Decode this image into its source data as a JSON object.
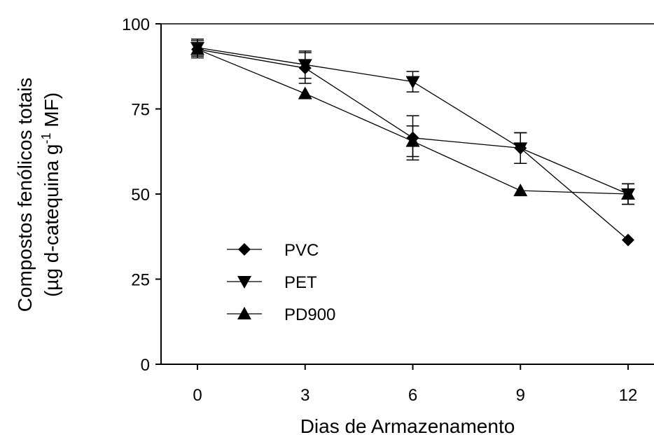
{
  "chart_data": {
    "type": "line",
    "xlabel": "Dias de Armazenamento",
    "ylabel_line1": "Compostos fenólicos totais",
    "ylabel_line2_pre": "(µg d-catequina g",
    "ylabel_line2_sup": "-1",
    "ylabel_line2_post": " MF)",
    "x": [
      0,
      3,
      6,
      9,
      12
    ],
    "xticks": [
      "0",
      "3",
      "6",
      "9",
      "12"
    ],
    "yticks": [
      "0",
      "25",
      "50",
      "75",
      "100"
    ],
    "xlim": [
      0,
      12
    ],
    "ylim": [
      0,
      100
    ],
    "grid": false,
    "legend_position": "lower-left",
    "series": [
      {
        "name": "PVC",
        "marker": "diamond",
        "color": "#000000",
        "values": [
          92.5,
          87,
          66.5,
          63.5,
          36.5
        ],
        "errors": [
          2,
          4.5,
          6.5,
          4.5,
          0
        ]
      },
      {
        "name": "PET",
        "marker": "triangle-down",
        "color": "#000000",
        "values": [
          93,
          88,
          83,
          63.5,
          50
        ],
        "errors": [
          2.5,
          4,
          3,
          4.5,
          3
        ]
      },
      {
        "name": "PD900",
        "marker": "triangle-up",
        "color": "#000000",
        "values": [
          92.5,
          79.5,
          65.5,
          51,
          50
        ],
        "errors": [
          2.5,
          0,
          4.5,
          0,
          3
        ]
      }
    ]
  }
}
